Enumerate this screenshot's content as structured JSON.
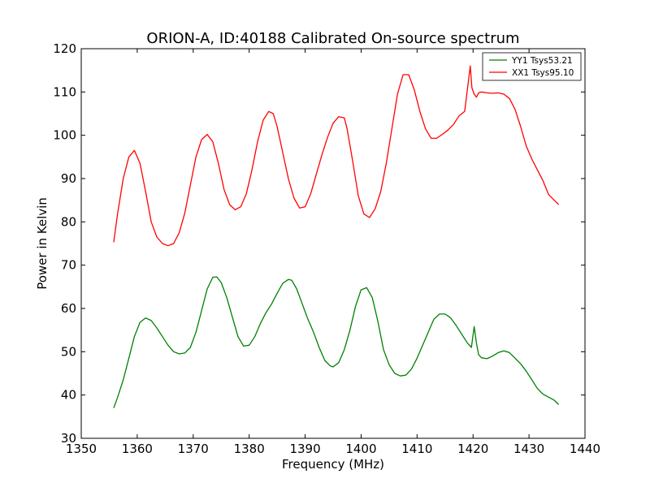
{
  "chart_data": {
    "type": "line",
    "title": "ORION-A, ID:40188 Calibrated On-source spectrum",
    "xlabel": "Frequency (MHz)",
    "ylabel": "Power in Kelvin",
    "xlim": [
      1350,
      1440
    ],
    "ylim": [
      30,
      120
    ],
    "xticks": [
      1350,
      1360,
      1370,
      1380,
      1390,
      1400,
      1410,
      1420,
      1430,
      1440
    ],
    "yticks": [
      30,
      40,
      50,
      60,
      70,
      80,
      90,
      100,
      110,
      120
    ],
    "grid": false,
    "legend_position": "top-right",
    "series": [
      {
        "name": "YY1 Tsys53.21",
        "color": "#008000",
        "x": [
          1355.8,
          1356.5,
          1357.5,
          1358.5,
          1359.5,
          1360.5,
          1361.5,
          1362.5,
          1363.5,
          1364.5,
          1365.5,
          1366.5,
          1367.5,
          1368.5,
          1369.5,
          1370.5,
          1371.5,
          1372.5,
          1373.5,
          1374.2,
          1375,
          1376,
          1377,
          1378,
          1379,
          1380,
          1381,
          1382,
          1383,
          1384,
          1385,
          1386,
          1387,
          1387.6,
          1388.5,
          1389.5,
          1390.5,
          1391.5,
          1392.5,
          1393.5,
          1394.5,
          1395,
          1396,
          1397,
          1398,
          1399,
          1400,
          1401,
          1402,
          1403,
          1404,
          1405,
          1406,
          1407,
          1408,
          1409,
          1410,
          1411,
          1412,
          1413,
          1414,
          1415,
          1416,
          1417,
          1418,
          1419,
          1419.7,
          1420.2,
          1420.6,
          1421,
          1421.5,
          1422.5,
          1423.5,
          1424.5,
          1425.5,
          1426.5,
          1427.5,
          1428.5,
          1429.5,
          1430.5,
          1431.5,
          1432.5,
          1433.5,
          1434.5,
          1435.3
        ],
        "y": [
          37,
          39.5,
          43.5,
          48.5,
          53.5,
          56.8,
          57.8,
          57.2,
          55.5,
          53.5,
          51.5,
          50,
          49.5,
          49.7,
          51,
          54.5,
          59.5,
          64.5,
          67.2,
          67.3,
          66,
          62.5,
          58,
          53.5,
          51.3,
          51.5,
          53.5,
          56.5,
          59,
          61,
          63.5,
          65.8,
          66.7,
          66.5,
          64.5,
          61,
          57.5,
          54.5,
          51,
          48,
          46.7,
          46.5,
          47.5,
          50.5,
          55,
          60.5,
          64.3,
          64.8,
          62.5,
          57,
          50.5,
          47,
          45,
          44.4,
          44.6,
          46,
          48.5,
          51.5,
          54.5,
          57.5,
          58.7,
          58.7,
          57.8,
          56,
          54,
          52,
          51,
          55.8,
          52,
          49.3,
          48.6,
          48.4,
          49,
          49.8,
          50.2,
          49.8,
          48.5,
          47.2,
          45.5,
          43.5,
          41.5,
          40.2,
          39.5,
          38.8,
          37.8
        ]
      },
      {
        "name": "XX1 Tsys95.10",
        "color": "#ff0000",
        "x": [
          1355.8,
          1356.5,
          1357.5,
          1358.5,
          1359.5,
          1360.5,
          1361.5,
          1362.5,
          1363.5,
          1364.5,
          1365.5,
          1366.5,
          1367.5,
          1368.5,
          1369.5,
          1370.5,
          1371.5,
          1372.5,
          1373.5,
          1374.5,
          1375.5,
          1376.5,
          1377.5,
          1378.5,
          1379.5,
          1380.5,
          1381.5,
          1382.5,
          1383.5,
          1384.3,
          1385,
          1386,
          1387,
          1388,
          1389,
          1390,
          1391,
          1392,
          1393,
          1394,
          1395,
          1396,
          1397,
          1397.5,
          1398.5,
          1399.5,
          1400.5,
          1401.5,
          1402.5,
          1403.5,
          1404.5,
          1405.5,
          1406.5,
          1407.5,
          1408.5,
          1409.5,
          1410.5,
          1411.5,
          1412.5,
          1413.5,
          1414.5,
          1415.5,
          1416.5,
          1417.5,
          1418.5,
          1419.5,
          1419.8,
          1420.2,
          1420.6,
          1421,
          1421.5,
          1422.5,
          1423.5,
          1424.5,
          1425.5,
          1426.5,
          1427.5,
          1428.5,
          1429.5,
          1430.5,
          1431.5,
          1432.5,
          1433.5,
          1434.5,
          1435.3
        ],
        "y": [
          75.3,
          82,
          90,
          95,
          96.5,
          93.5,
          87,
          80,
          76.5,
          75,
          74.5,
          75,
          77.5,
          82,
          88.5,
          95,
          99,
          100.2,
          98.5,
          93.5,
          87.5,
          84,
          82.8,
          83.5,
          86.5,
          92,
          98.5,
          103.5,
          105.5,
          105,
          102,
          96,
          90,
          85.5,
          83.2,
          83.5,
          86.5,
          91,
          95.5,
          99.5,
          102.8,
          104.3,
          104,
          101.5,
          94,
          86,
          81.8,
          81,
          83,
          87,
          93.5,
          101.5,
          109.5,
          114,
          114,
          110.5,
          105.5,
          101.5,
          99.3,
          99.3,
          100.2,
          101.2,
          102.5,
          104.5,
          105.5,
          116,
          111,
          109.5,
          108.8,
          109.8,
          110,
          109.8,
          109.7,
          109.8,
          109.5,
          108.5,
          106,
          102,
          97.5,
          94.5,
          92,
          89.5,
          86.3,
          85,
          84
        ]
      }
    ]
  }
}
